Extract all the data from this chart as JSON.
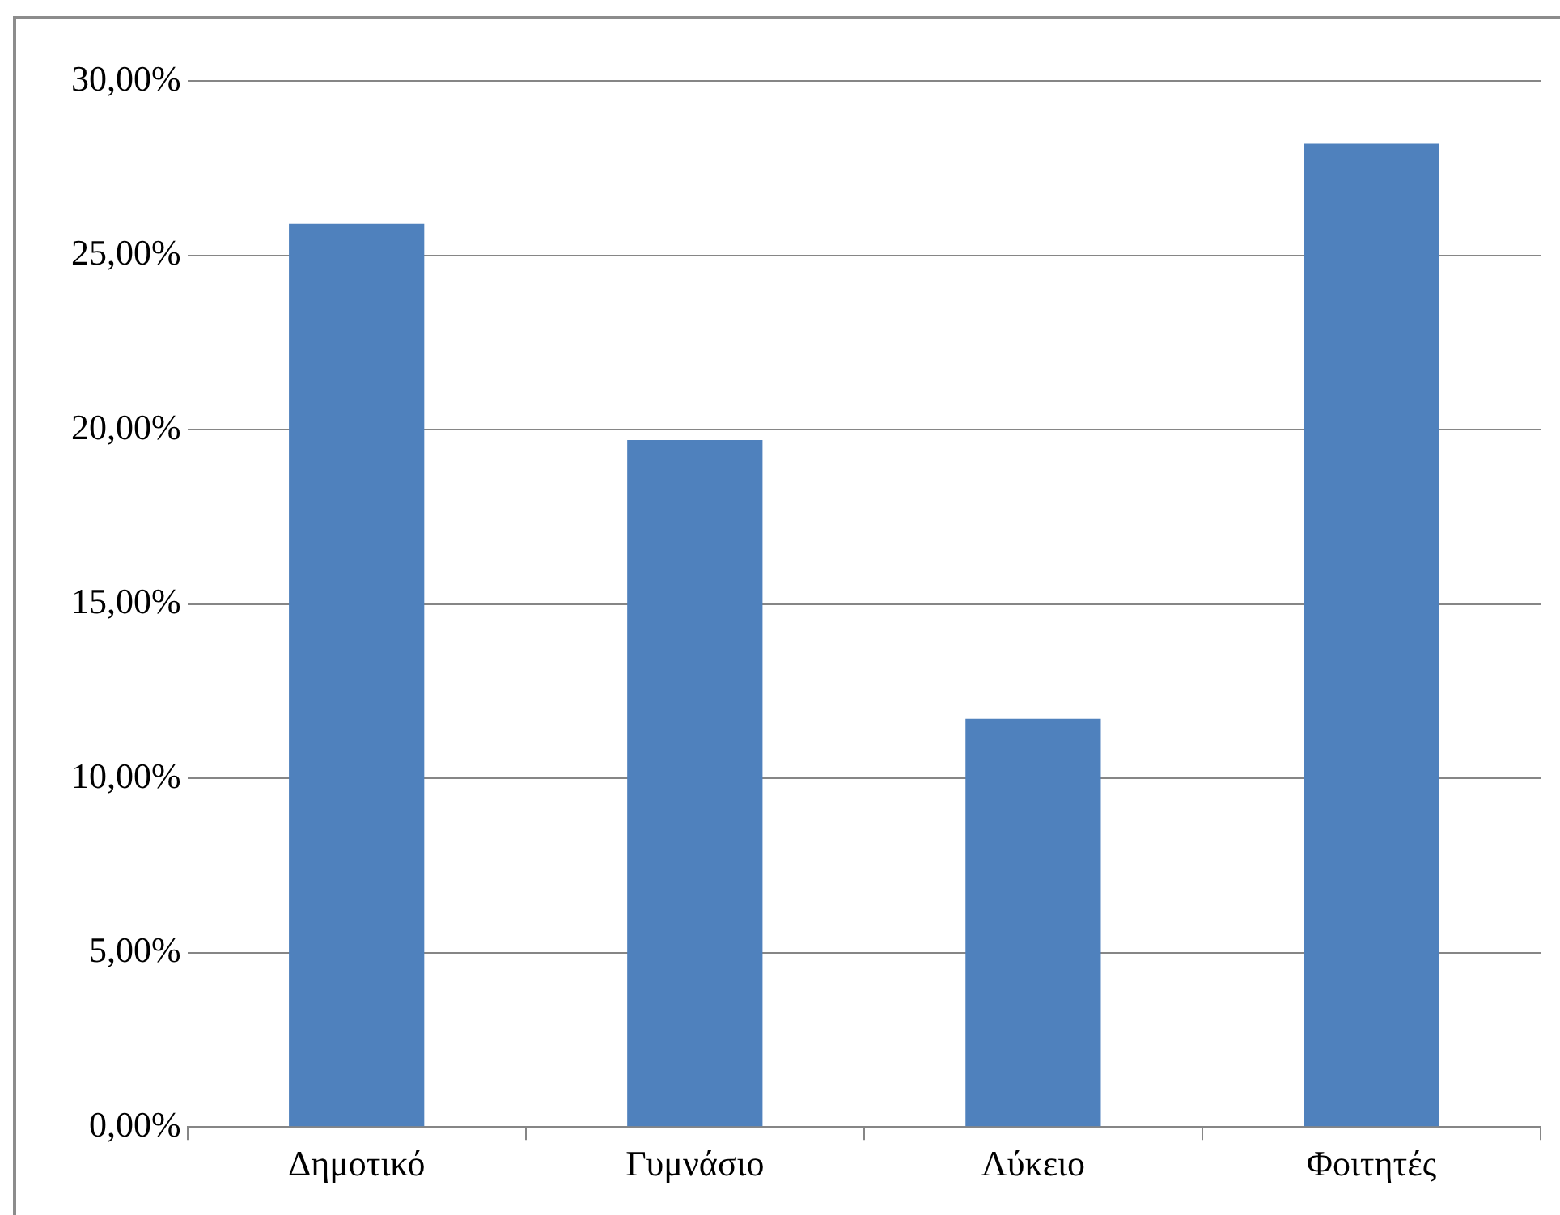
{
  "chart_data": {
    "type": "bar",
    "categories": [
      "Δημοτικό",
      "Γυμνάσιο",
      "Λύκειο",
      "Φοιτητές"
    ],
    "values": [
      25.9,
      19.7,
      11.7,
      28.2
    ],
    "color": "#4f81bd",
    "ylim": [
      0,
      30
    ],
    "yticks": [
      {
        "value": 0,
        "label": "0,00%"
      },
      {
        "value": 5,
        "label": "5,00%"
      },
      {
        "value": 10,
        "label": "10,00%"
      },
      {
        "value": 15,
        "label": "15,00%"
      },
      {
        "value": 20,
        "label": "20,00%"
      },
      {
        "value": 25,
        "label": "25,00%"
      },
      {
        "value": 30,
        "label": "30,00%"
      }
    ],
    "grid": "y",
    "legend": false
  }
}
